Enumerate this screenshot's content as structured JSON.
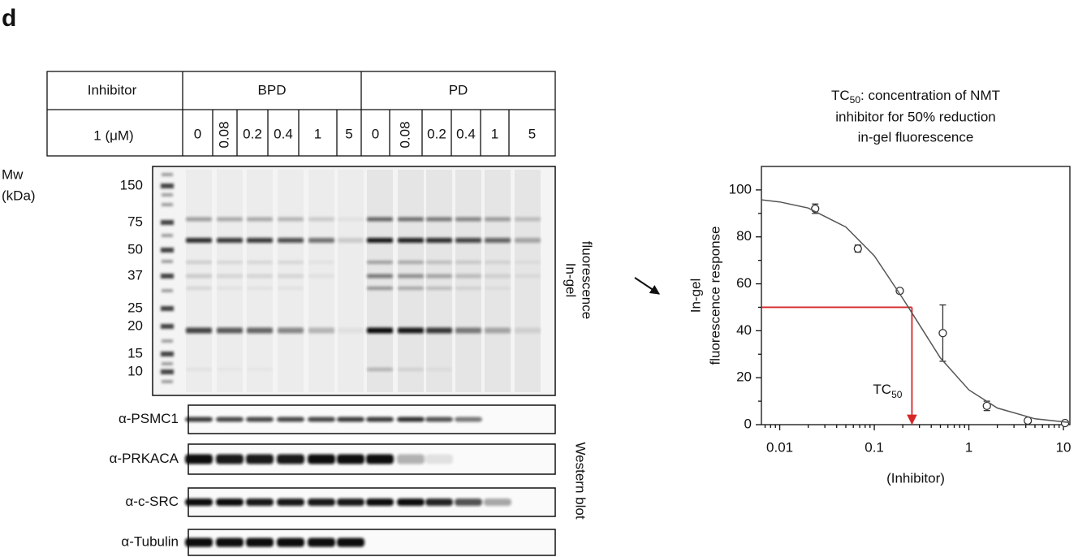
{
  "panel_label": "d",
  "gel": {
    "header": {
      "inhibitor": "Inhibitor",
      "dose": "1 (μM)",
      "groups": [
        "BPD",
        "PD"
      ],
      "lanes": [
        [
          "0",
          "0.08",
          "0.2",
          "0.4",
          "1",
          "5"
        ],
        [
          "0",
          "0.08",
          "0.2",
          "0.4",
          "1",
          "5"
        ]
      ]
    },
    "mw_title": [
      "Mw",
      "(kDa)"
    ],
    "mw": [
      "150",
      "75",
      "50",
      "37",
      "25",
      "20",
      "15",
      "10"
    ],
    "fluorescence_label": [
      "In-gel",
      "fluorescence"
    ],
    "blots": [
      "α-PSMC1",
      "α-PRKACA",
      "α-c-SRC",
      "α-Tubulin"
    ],
    "blot_label": "Western blot"
  },
  "chart_data": {
    "type": "scatter",
    "title": {
      "main": "TC",
      "sub": "50",
      "rest": [
        ": concentration of NMT",
        "inhibitor for 50% reduction",
        "in-gel fluorescence"
      ]
    },
    "xlabel": "(Inhibitor)",
    "ylabel": [
      "In-gel",
      "fluorescence response"
    ],
    "xscale": "log",
    "xlim": [
      0.0064,
      11.7
    ],
    "ylim": [
      0,
      110
    ],
    "xticks": [
      0.01,
      0.1,
      1,
      10
    ],
    "xminor_ticks": [
      0.007,
      0.008,
      0.009,
      0.02,
      0.03,
      0.04,
      0.05,
      0.06,
      0.07,
      0.08,
      0.09,
      0.2,
      0.3,
      0.4,
      0.5,
      0.6,
      0.7,
      0.8,
      0.9,
      2,
      3,
      4,
      5,
      6,
      7,
      8,
      9
    ],
    "yticks": [
      0,
      20,
      40,
      60,
      80,
      100
    ],
    "yminor_ticks": [
      10,
      30,
      50,
      70,
      90
    ],
    "series": [
      {
        "kind": "points",
        "color": "#333333",
        "x": [
          0.0237,
          0.067,
          0.186,
          0.53,
          1.55,
          4.2,
          10.4
        ],
        "values": [
          92,
          75,
          57,
          39,
          8,
          1.7,
          0.7
        ],
        "errors": [
          2,
          1.5,
          1,
          12,
          2,
          0.5,
          0.3
        ]
      },
      {
        "kind": "line",
        "color": "#555555",
        "x": [
          0.0064,
          0.01,
          0.02,
          0.05,
          0.1,
          0.2,
          0.5,
          1,
          2,
          5,
          11.7
        ],
        "values": [
          95.8,
          94.9,
          92.3,
          84.2,
          71.9,
          53.8,
          28.4,
          14.8,
          7.1,
          2.5,
          0.9
        ]
      }
    ],
    "annotation": {
      "text": "TC",
      "sub": "50",
      "x": 0.25,
      "y": 50,
      "color": "#d62728"
    }
  }
}
